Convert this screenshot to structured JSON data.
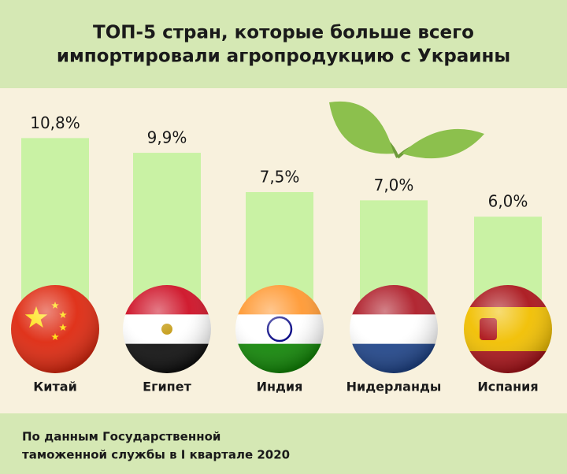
{
  "chart_data": {
    "type": "bar",
    "title": [
      "ТОП-5 стран, которые больше всего",
      "импортировали агропродукцию с Украины"
    ],
    "categories": [
      "Китай",
      "Египет",
      "Индия",
      "Нидерланды",
      "Испания"
    ],
    "values": [
      10.8,
      9.9,
      7.5,
      7.0,
      6.0
    ],
    "value_labels": [
      "10,8%",
      "9,9%",
      "7,5%",
      "7,0%",
      "6,0%"
    ],
    "color": "#c9f2a4",
    "note": [
      "По данным Государственной",
      "таможенной службы в I квартале 2020"
    ]
  }
}
